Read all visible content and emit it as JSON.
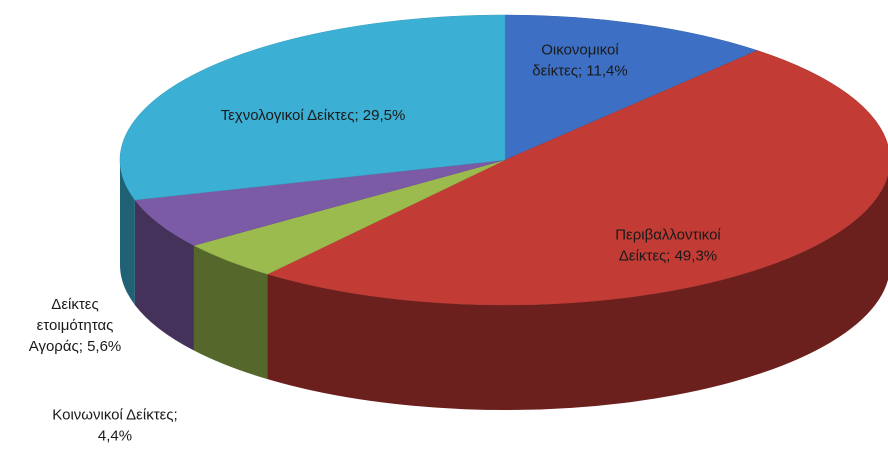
{
  "chart_data": {
    "type": "pie3d",
    "values": [
      11.4,
      49.3,
      4.4,
      5.6,
      29.5
    ],
    "value_labels": [
      "Οικονομικοί δείκτες; 11,4%",
      "Περιβαλλοντικοί Δείκτες; 49,3%",
      "Κοινωνικοί Δείκτες; 4,4%",
      "Δείκτες ετοιμότητας Αγοράς; 5,6%",
      "Τεχνολογικοί Δείκτες; 29,5%"
    ],
    "colors": [
      "#3d70c4",
      "#c23b35",
      "#9bbb4f",
      "#7c5ba6",
      "#3cb0d4"
    ]
  }
}
